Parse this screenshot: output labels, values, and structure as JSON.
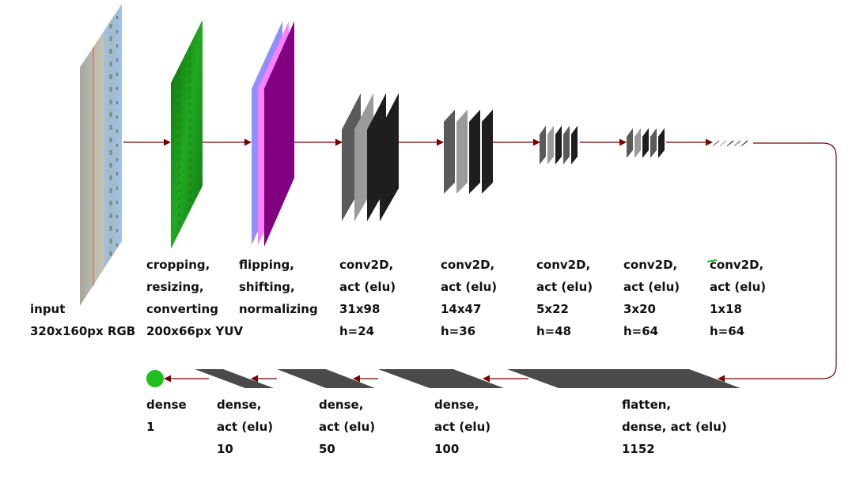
{
  "colors": {
    "arrow": "#7a0000",
    "layer_dark": "#1e1e1e",
    "layer_mid": "#5a5a5a",
    "layer_light": "#9a9a9a",
    "dense_bar": "#4a4a4a",
    "output_node": "#1fbf1f",
    "crop_green": "#1a9a1a",
    "norm_blue": "#8f8fff",
    "norm_pink": "#ff7fff",
    "norm_purple": "#800080"
  },
  "icons": {
    "input_image": "road-camera-image",
    "crop_image": "yuv-green-image",
    "output_node": "green-circle"
  },
  "stages": [
    {
      "id": "input",
      "lines": [
        "input",
        "320x160px RGB"
      ]
    },
    {
      "id": "crop",
      "lines": [
        "cropping,",
        "resizing,",
        "converting",
        "200x66px YUV"
      ]
    },
    {
      "id": "norm",
      "lines": [
        "flipping,",
        "shifting,",
        "normalizing"
      ]
    },
    {
      "id": "conv1",
      "lines": [
        "conv2D,",
        "act (elu)",
        "31x98",
        "h=24"
      ]
    },
    {
      "id": "conv2",
      "lines": [
        "conv2D,",
        "act (elu)",
        "14x47",
        "h=36"
      ]
    },
    {
      "id": "conv3",
      "lines": [
        "conv2D,",
        "act (elu)",
        "5x22",
        "h=48"
      ]
    },
    {
      "id": "conv4",
      "lines": [
        "conv2D,",
        "act (elu)",
        "3x20",
        "h=64"
      ]
    },
    {
      "id": "conv5",
      "lines": [
        "conv2D,",
        "act (elu)",
        "1x18",
        "h=64"
      ]
    }
  ],
  "dense_stages": [
    {
      "id": "flatten",
      "lines": [
        "flatten,",
        "dense, act (elu)",
        "1152"
      ]
    },
    {
      "id": "dense100",
      "lines": [
        "dense,",
        "act (elu)",
        "100"
      ]
    },
    {
      "id": "dense50",
      "lines": [
        "dense,",
        "act (elu)",
        "50"
      ]
    },
    {
      "id": "dense10",
      "lines": [
        "dense,",
        "act (elu)",
        "10"
      ]
    },
    {
      "id": "dense1",
      "lines": [
        "dense",
        "1"
      ]
    }
  ]
}
